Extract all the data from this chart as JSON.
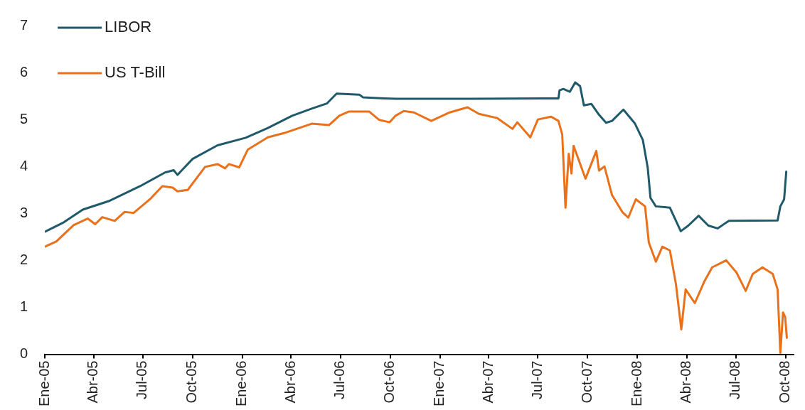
{
  "chart_data": {
    "type": "line",
    "legend": "top left",
    "marker": "none",
    "line_style": "solid",
    "grid": false,
    "xlim": [
      "2005-01-01",
      "2008-10-15"
    ],
    "ylim": [
      0,
      7
    ],
    "yticks": [
      0,
      1,
      2,
      3,
      4,
      5,
      6,
      7
    ],
    "xticks": [
      {
        "value": "2005-01-01",
        "label": "Ene-05"
      },
      {
        "value": "2005-04-01",
        "label": "Abr-05"
      },
      {
        "value": "2005-07-01",
        "label": "Jul-05"
      },
      {
        "value": "2005-10-01",
        "label": "Oct-05"
      },
      {
        "value": "2006-01-01",
        "label": "Ene-06"
      },
      {
        "value": "2006-04-01",
        "label": "Abr-06"
      },
      {
        "value": "2006-07-01",
        "label": "Jul-06"
      },
      {
        "value": "2006-10-01",
        "label": "Oct-06"
      },
      {
        "value": "2007-01-01",
        "label": "Ene-07"
      },
      {
        "value": "2007-04-01",
        "label": "Abr-07"
      },
      {
        "value": "2007-07-01",
        "label": "Jul-07"
      },
      {
        "value": "2007-10-01",
        "label": "Oct-07"
      },
      {
        "value": "2008-01-01",
        "label": "Ene-08"
      },
      {
        "value": "2008-04-01",
        "label": "Abr-08"
      },
      {
        "value": "2008-07-01",
        "label": "Jul-08"
      },
      {
        "value": "2008-10-01",
        "label": "Oct-08"
      }
    ],
    "series": [
      {
        "name": "LIBOR",
        "color": "#1f5a6a",
        "x": [
          "2005-01-01",
          "2005-02-05",
          "2005-03-12",
          "2005-05-01",
          "2005-06-26",
          "2005-08-11",
          "2005-08-27",
          "2005-09-03",
          "2005-10-01",
          "2005-11-16",
          "2006-01-07",
          "2006-02-17",
          "2006-04-03",
          "2006-05-09",
          "2006-06-06",
          "2006-06-24",
          "2006-08-05",
          "2006-08-12",
          "2006-09-20",
          "2006-10-12",
          "2007-03-01",
          "2007-08-08",
          "2007-08-10",
          "2007-08-17",
          "2007-08-29",
          "2007-09-08",
          "2007-09-17",
          "2007-09-24",
          "2007-10-08",
          "2007-10-22",
          "2007-11-04",
          "2007-11-15",
          "2007-12-06",
          "2007-12-27",
          "2008-01-11",
          "2008-01-20",
          "2008-01-25",
          "2008-02-04",
          "2008-03-01",
          "2008-03-21",
          "2008-04-04",
          "2008-04-23",
          "2008-05-11",
          "2008-05-28",
          "2008-06-18",
          "2008-09-16",
          "2008-09-21",
          "2008-09-28",
          "2008-10-02"
        ],
        "values": [
          2.61,
          2.81,
          3.08,
          3.27,
          3.58,
          3.87,
          3.92,
          3.82,
          4.16,
          4.45,
          4.61,
          4.82,
          5.08,
          5.23,
          5.34,
          5.55,
          5.53,
          5.47,
          5.45,
          5.44,
          5.44,
          5.45,
          5.62,
          5.65,
          5.59,
          5.79,
          5.71,
          5.3,
          5.33,
          5.1,
          4.93,
          4.97,
          5.21,
          4.92,
          4.56,
          3.97,
          3.33,
          3.15,
          3.12,
          2.62,
          2.74,
          2.95,
          2.74,
          2.68,
          2.84,
          2.85,
          3.15,
          3.3,
          3.89
        ]
      },
      {
        "name": "US T-Bill",
        "color": "#e9711c",
        "x": [
          "2005-01-01",
          "2005-01-22",
          "2005-02-23",
          "2005-03-21",
          "2005-04-04",
          "2005-04-17",
          "2005-05-10",
          "2005-05-28",
          "2005-06-14",
          "2005-07-14",
          "2005-08-06",
          "2005-08-25",
          "2005-09-03",
          "2005-09-22",
          "2005-10-05",
          "2005-10-24",
          "2005-11-16",
          "2005-11-30",
          "2005-12-07",
          "2005-12-26",
          "2006-01-11",
          "2006-02-17",
          "2006-03-19",
          "2006-05-09",
          "2006-06-10",
          "2006-06-29",
          "2006-07-17",
          "2006-08-23",
          "2006-09-11",
          "2006-09-30",
          "2006-10-11",
          "2006-10-26",
          "2006-11-14",
          "2006-12-16",
          "2007-01-19",
          "2007-02-21",
          "2007-03-14",
          "2007-04-17",
          "2007-05-15",
          "2007-05-24",
          "2007-06-17",
          "2007-07-01",
          "2007-07-25",
          "2007-08-08",
          "2007-08-15",
          "2007-08-21",
          "2007-08-27",
          "2007-09-01",
          "2007-09-05",
          "2007-09-27",
          "2007-10-17",
          "2007-10-22",
          "2007-11-01",
          "2007-11-15",
          "2007-12-04",
          "2007-12-15",
          "2007-12-29",
          "2008-01-15",
          "2008-01-22",
          "2008-02-04",
          "2008-02-16",
          "2008-03-01",
          "2008-03-12",
          "2008-03-22",
          "2008-03-30",
          "2008-04-16",
          "2008-05-04",
          "2008-05-18",
          "2008-06-13",
          "2008-07-02",
          "2008-07-19",
          "2008-08-01",
          "2008-08-19",
          "2008-09-07",
          "2008-09-16",
          "2008-09-21",
          "2008-09-26",
          "2008-09-30",
          "2008-10-03"
        ],
        "values": [
          2.29,
          2.4,
          2.75,
          2.89,
          2.77,
          2.92,
          2.84,
          3.03,
          3.01,
          3.3,
          3.58,
          3.55,
          3.47,
          3.5,
          3.7,
          3.99,
          4.05,
          3.96,
          4.05,
          3.98,
          4.36,
          4.62,
          4.71,
          4.91,
          4.88,
          5.08,
          5.17,
          5.17,
          4.99,
          4.94,
          5.08,
          5.18,
          5.15,
          4.97,
          5.15,
          5.26,
          5.12,
          5.03,
          4.8,
          4.94,
          4.62,
          5.0,
          5.06,
          4.97,
          4.68,
          3.12,
          4.27,
          3.85,
          4.44,
          3.74,
          4.33,
          3.91,
          4.0,
          3.39,
          3.03,
          2.91,
          3.3,
          3.15,
          2.38,
          1.97,
          2.29,
          2.21,
          1.5,
          0.53,
          1.38,
          1.09,
          1.56,
          1.85,
          2.0,
          1.74,
          1.35,
          1.71,
          1.85,
          1.71,
          1.38,
          0.03,
          0.89,
          0.79,
          0.35
        ]
      }
    ]
  }
}
